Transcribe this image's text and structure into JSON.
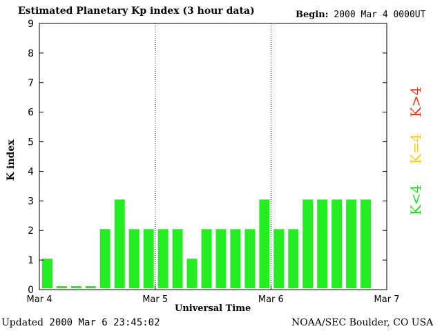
{
  "header": {
    "title": "Estimated Planetary Kp index (3 hour data)",
    "begin_label": "Begin:",
    "begin_value": "2000 Mar 4 0000UT"
  },
  "footer": {
    "updated_label": "Updated",
    "updated_value": "2000 Mar  6 23:45:02",
    "credit": "NOAA/SEC Boulder, CO USA"
  },
  "legend": {
    "low": {
      "label": "K<4",
      "color": "#22dd22"
    },
    "mid": {
      "label": "K=4",
      "color": "#ffcc00"
    },
    "high": {
      "label": "K>4",
      "color": "#ee3311"
    }
  },
  "chart_data": {
    "type": "bar",
    "title": "Estimated Planetary Kp index (3 hour data)",
    "xlabel": "Universal Time",
    "ylabel": "K index",
    "ylim": [
      0,
      9
    ],
    "yticks": [
      0,
      1,
      2,
      3,
      4,
      5,
      6,
      7,
      8,
      9
    ],
    "xticks": [
      "Mar 4",
      "Mar 5",
      "Mar 6",
      "Mar 7"
    ],
    "day_dividers": [
      "Mar 5",
      "Mar 6"
    ],
    "bar_color": "#22ee22",
    "interval_hours": 3,
    "categories": [
      "Mar 4 00",
      "Mar 4 03",
      "Mar 4 06",
      "Mar 4 09",
      "Mar 4 12",
      "Mar 4 15",
      "Mar 4 18",
      "Mar 4 21",
      "Mar 5 00",
      "Mar 5 03",
      "Mar 5 06",
      "Mar 5 09",
      "Mar 5 12",
      "Mar 5 15",
      "Mar 5 18",
      "Mar 5 21",
      "Mar 6 00",
      "Mar 6 03",
      "Mar 6 06",
      "Mar 6 09",
      "Mar 6 12",
      "Mar 6 15",
      "Mar 6 18",
      "Mar 6 21"
    ],
    "values": [
      1,
      0,
      0,
      0,
      2,
      3,
      2,
      2,
      2,
      2,
      1,
      2,
      2,
      2,
      2,
      3,
      2,
      2,
      3,
      3,
      3,
      3,
      3,
      null
    ]
  }
}
